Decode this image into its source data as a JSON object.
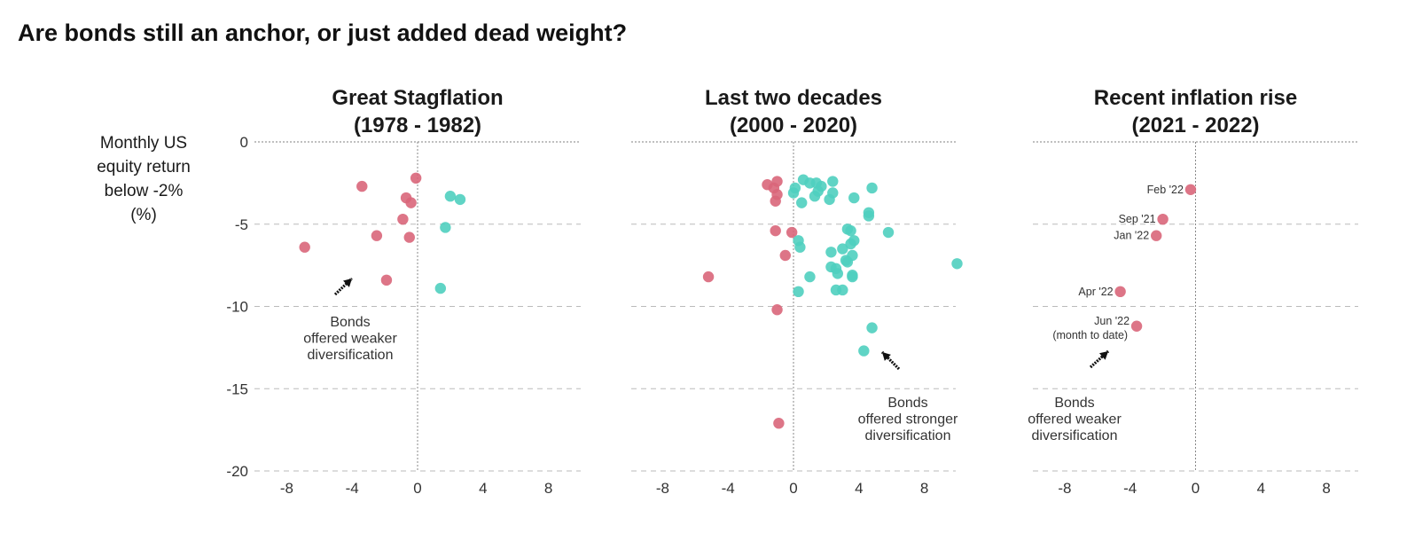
{
  "title": "Are bonds still an anchor, or just added dead weight?",
  "colors": {
    "weaker": "#d9667a",
    "stronger": "#4fcfbf",
    "zero_line": "#888888",
    "grid": "#bbbbbb"
  },
  "chart_data": [
    {
      "type": "scatter",
      "title": "Great Stagflation (1978 - 1982)",
      "title_lines": [
        "Great Stagflation",
        "(1978 - 1982)"
      ],
      "ylabel": "Monthly US equity return below -2% (%)",
      "ylabel_lines": [
        "Monthly US",
        "equity return",
        "below -2%",
        "(%)"
      ],
      "xlim": [
        -10,
        10
      ],
      "ylim": [
        -20,
        0
      ],
      "x_ticks": [
        "-8",
        "-4",
        "0",
        "4",
        "8"
      ],
      "y_ticks": [
        "0",
        "-5",
        "-10",
        "-15",
        "-20"
      ],
      "grid": "horizontal dashed",
      "series": [
        {
          "points": [
            [
              -3.4,
              -2.7
            ],
            [
              -0.1,
              -2.2
            ],
            [
              -0.7,
              -3.4
            ],
            [
              -0.4,
              -3.7
            ],
            [
              -0.9,
              -4.7
            ],
            [
              -2.5,
              -5.7
            ],
            [
              -0.5,
              -5.8
            ],
            [
              -6.9,
              -6.4
            ],
            [
              -1.9,
              -8.4
            ]
          ]
        },
        {
          "points": [
            [
              2.0,
              -3.3
            ],
            [
              2.6,
              -3.5
            ],
            [
              1.7,
              -5.2
            ],
            [
              1.4,
              -8.9
            ]
          ]
        }
      ],
      "annotations": [
        {
          "lines": [
            "Bonds",
            "offered weaker",
            "diversification"
          ]
        }
      ]
    },
    {
      "type": "scatter",
      "title": "Last two decades (2000 - 2020)",
      "title_lines": [
        "Last two decades",
        "(2000 - 2020)"
      ],
      "xlim": [
        -10,
        10
      ],
      "ylim": [
        -20,
        0
      ],
      "x_ticks": [
        "-8",
        "-4",
        "0",
        "4",
        "8"
      ],
      "grid": "horizontal dashed",
      "series": [
        {
          "points": [
            [
              -1.6,
              -2.6
            ],
            [
              -1.2,
              -2.8
            ],
            [
              -1.0,
              -2.4
            ],
            [
              -1.0,
              -3.2
            ],
            [
              -1.1,
              -3.6
            ],
            [
              -1.1,
              -5.4
            ],
            [
              -0.1,
              -5.5
            ],
            [
              -0.5,
              -6.9
            ],
            [
              -5.2,
              -8.2
            ],
            [
              -1.0,
              -10.2
            ],
            [
              -0.9,
              -17.1
            ]
          ]
        },
        {
          "points": [
            [
              0.6,
              -2.3
            ],
            [
              1.0,
              -2.5
            ],
            [
              1.4,
              -2.5
            ],
            [
              1.7,
              -2.7
            ],
            [
              2.4,
              -2.4
            ],
            [
              0.1,
              -2.8
            ],
            [
              0.0,
              -3.1
            ],
            [
              1.5,
              -3.0
            ],
            [
              1.3,
              -3.3
            ],
            [
              2.4,
              -3.1
            ],
            [
              2.2,
              -3.5
            ],
            [
              3.7,
              -3.4
            ],
            [
              4.8,
              -2.8
            ],
            [
              0.5,
              -3.7
            ],
            [
              4.6,
              -4.3
            ],
            [
              4.6,
              -4.5
            ],
            [
              3.3,
              -5.3
            ],
            [
              3.5,
              -5.4
            ],
            [
              5.8,
              -5.5
            ],
            [
              3.7,
              -6.0
            ],
            [
              3.5,
              -6.2
            ],
            [
              0.3,
              -6.0
            ],
            [
              0.4,
              -6.4
            ],
            [
              2.3,
              -6.7
            ],
            [
              3.0,
              -6.5
            ],
            [
              3.2,
              -7.2
            ],
            [
              3.6,
              -6.9
            ],
            [
              3.3,
              -7.3
            ],
            [
              2.3,
              -7.6
            ],
            [
              2.6,
              -7.7
            ],
            [
              2.7,
              -8.0
            ],
            [
              3.6,
              -8.1
            ],
            [
              3.6,
              -8.2
            ],
            [
              1.0,
              -8.2
            ],
            [
              2.6,
              -9.0
            ],
            [
              3.0,
              -9.0
            ],
            [
              0.3,
              -9.1
            ],
            [
              10.0,
              -7.4
            ],
            [
              4.8,
              -11.3
            ],
            [
              4.3,
              -12.7
            ]
          ]
        }
      ],
      "annotations": [
        {
          "lines": [
            "Bonds",
            "offered stronger",
            "diversification"
          ]
        }
      ]
    },
    {
      "type": "scatter",
      "title": "Recent inflation rise (2021 - 2022)",
      "title_lines": [
        "Recent inflation rise",
        "(2021 - 2022)"
      ],
      "xlim": [
        -10,
        10
      ],
      "ylim": [
        -20,
        0
      ],
      "x_ticks": [
        "-8",
        "-4",
        "0",
        "4",
        "8"
      ],
      "grid": "horizontal dashed",
      "series": [
        {
          "points": [
            [
              -0.3,
              -2.9
            ],
            [
              -2.0,
              -4.7
            ],
            [
              -2.4,
              -5.7
            ],
            [
              -4.6,
              -9.1
            ],
            [
              -3.6,
              -11.2
            ]
          ],
          "point_labels": [
            "Feb '22",
            "Sep '21",
            "Jan '22",
            "Apr '22",
            "Jun '22"
          ]
        }
      ],
      "point_sublabels": [
        "",
        "",
        "",
        "",
        "(month to date)"
      ],
      "annotations": [
        {
          "lines": [
            "Bonds",
            "offered weaker",
            "diversification"
          ]
        }
      ]
    }
  ]
}
